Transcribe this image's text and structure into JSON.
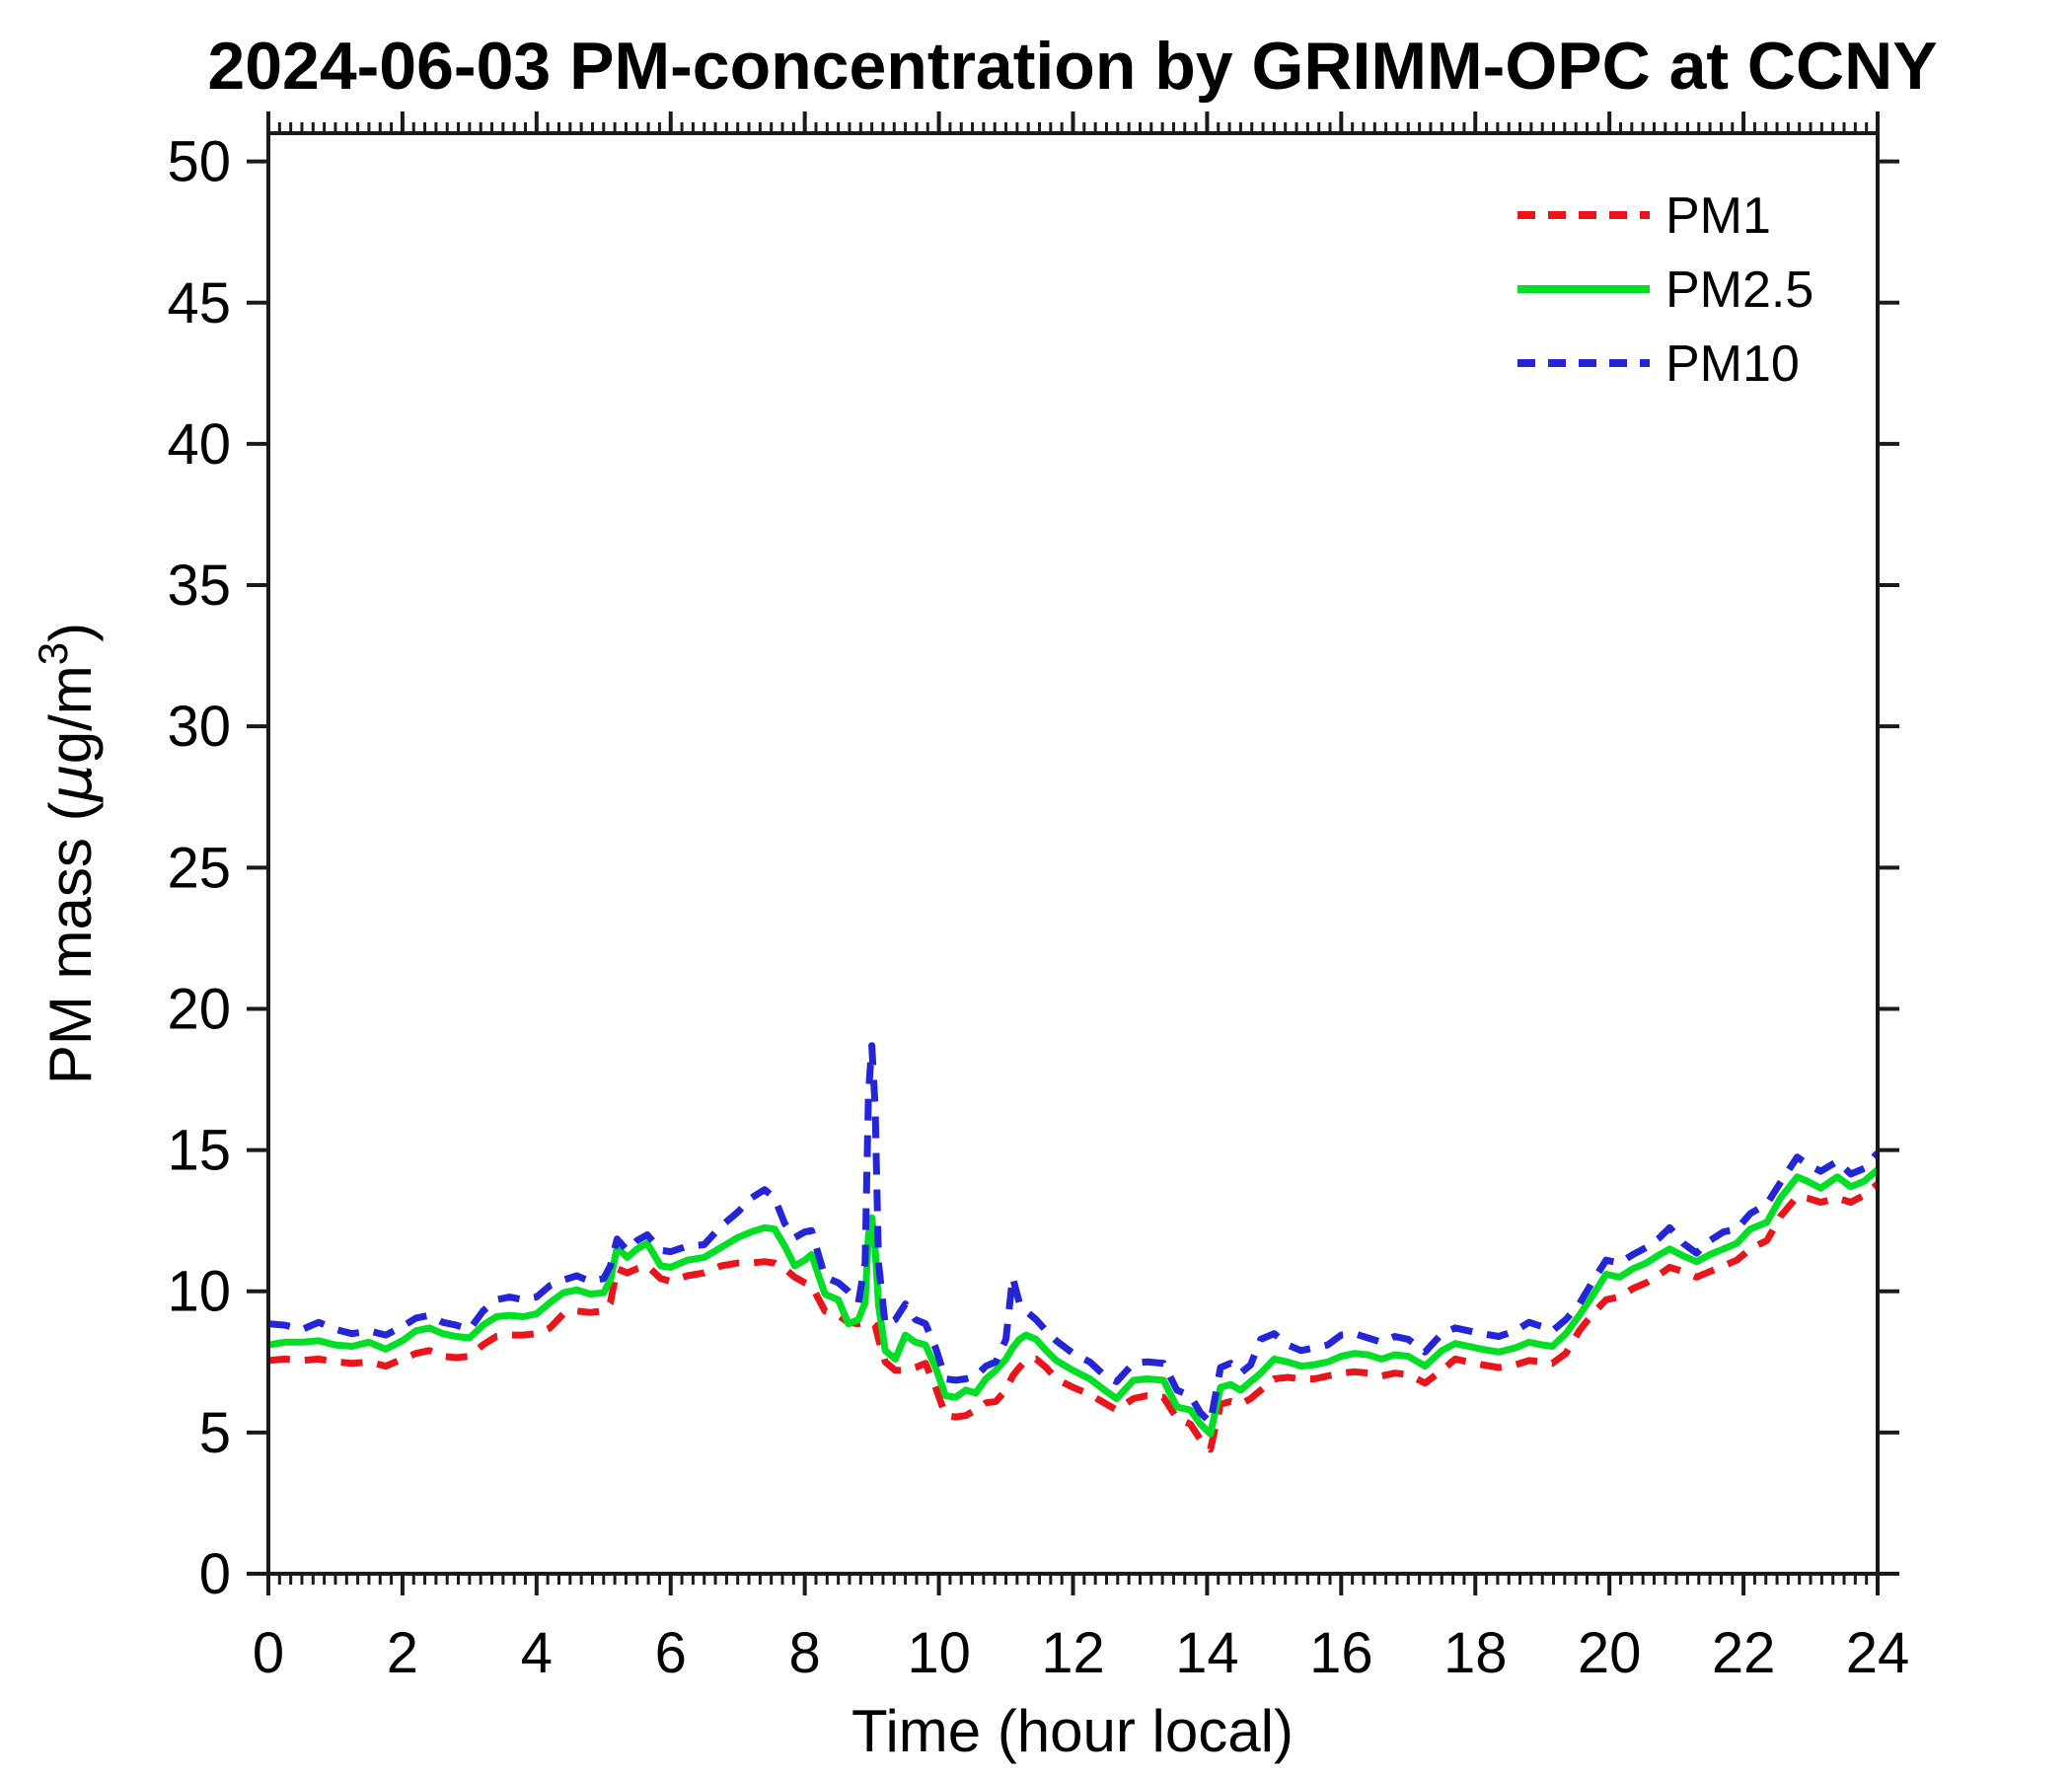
{
  "title": "2024-06-03 PM-concentration by GRIMM-OPC at CCNY",
  "axes": {
    "xlabel": "Time (hour local)",
    "ylabel_parts": {
      "prefix": "PM mass (",
      "mu": "μ",
      "mid": "g/m",
      "sup": "3",
      "suffix": ")"
    },
    "xticks": [
      0,
      2,
      4,
      6,
      8,
      10,
      12,
      14,
      16,
      18,
      20,
      22,
      24
    ],
    "yticks": [
      0,
      5,
      10,
      15,
      20,
      25,
      30,
      35,
      40,
      45,
      50
    ],
    "x_minor_step_minutes": 10,
    "axis_color": "#1a1a1a"
  },
  "legend": {
    "position": "upper right"
  },
  "chart_data": {
    "type": "line",
    "title": "2024-06-03 PM-concentration by GRIMM-OPC at CCNY",
    "xlabel": "Time (hour local)",
    "ylabel": "PM mass (μg/m³)",
    "xlim": [
      0,
      24
    ],
    "ylim": [
      0,
      51
    ],
    "grid": false,
    "legend_position": "upper right",
    "x": [
      0,
      0.25,
      0.5,
      0.75,
      1,
      1.25,
      1.5,
      1.75,
      2,
      2.2,
      2.4,
      2.6,
      2.8,
      3,
      3.2,
      3.4,
      3.6,
      3.8,
      4,
      4.2,
      4.4,
      4.6,
      4.8,
      5,
      5.1,
      5.2,
      5.35,
      5.5,
      5.65,
      5.85,
      6,
      6.25,
      6.5,
      6.75,
      7,
      7.2,
      7.4,
      7.55,
      7.7,
      7.85,
      8,
      8.1,
      8.3,
      8.5,
      8.65,
      8.8,
      8.9,
      8.95,
      9,
      9.05,
      9.1,
      9.2,
      9.35,
      9.5,
      9.65,
      9.8,
      9.95,
      10.1,
      10.25,
      10.4,
      10.55,
      10.7,
      10.85,
      11,
      11.1,
      11.2,
      11.3,
      11.45,
      11.6,
      11.75,
      12,
      12.25,
      12.5,
      12.65,
      12.9,
      13.1,
      13.35,
      13.55,
      13.75,
      13.9,
      14.05,
      14.2,
      14.35,
      14.5,
      14.65,
      14.8,
      15,
      15.2,
      15.4,
      15.6,
      15.8,
      16,
      16.2,
      16.4,
      16.6,
      16.8,
      17,
      17.25,
      17.5,
      17.7,
      17.9,
      18.1,
      18.35,
      18.6,
      18.8,
      19,
      19.15,
      19.35,
      19.55,
      19.75,
      19.95,
      20.15,
      20.35,
      20.55,
      20.75,
      20.9,
      21.1,
      21.3,
      21.5,
      21.7,
      21.9,
      22.1,
      22.35,
      22.55,
      22.8,
      22.95,
      23.15,
      23.4,
      23.6,
      23.8,
      24
    ],
    "series": [
      {
        "name": "PM1",
        "color": "#ea151b",
        "style": "dashed",
        "values": [
          7.55,
          7.6,
          7.55,
          7.6,
          7.5,
          7.45,
          7.5,
          7.35,
          7.6,
          7.8,
          7.9,
          7.7,
          7.65,
          7.7,
          8.1,
          8.4,
          8.45,
          8.45,
          8.5,
          8.7,
          9.2,
          9.3,
          9.25,
          9.3,
          9.6,
          10.8,
          10.65,
          10.8,
          10.9,
          10.45,
          10.35,
          10.55,
          10.65,
          10.9,
          11.0,
          11.0,
          11.05,
          11.0,
          10.8,
          10.5,
          10.3,
          10.2,
          9.3,
          9.15,
          8.9,
          8.85,
          8.9,
          8.9,
          8.9,
          8.8,
          8.3,
          7.5,
          7.2,
          7.2,
          7.3,
          7.45,
          6.6,
          5.6,
          5.55,
          5.6,
          5.8,
          6.05,
          6.1,
          6.5,
          7.0,
          7.3,
          7.55,
          7.6,
          7.3,
          6.9,
          6.6,
          6.35,
          6.0,
          5.8,
          6.2,
          6.3,
          6.25,
          5.5,
          5.3,
          4.75,
          4.4,
          6.0,
          6.1,
          6.0,
          6.2,
          6.5,
          6.9,
          6.95,
          6.9,
          6.9,
          7.0,
          7.1,
          7.15,
          7.1,
          7.0,
          7.1,
          7.05,
          6.75,
          7.2,
          7.6,
          7.5,
          7.4,
          7.3,
          7.4,
          7.55,
          7.5,
          7.45,
          7.8,
          8.6,
          9.2,
          9.7,
          9.8,
          10.1,
          10.3,
          10.6,
          10.85,
          10.7,
          10.5,
          10.7,
          10.9,
          11.1,
          11.5,
          11.8,
          12.65,
          13.35,
          13.3,
          13.15,
          13.3,
          13.15,
          13.4,
          13.8
        ]
      },
      {
        "name": "PM2.5",
        "color": "#00de26",
        "style": "solid",
        "values": [
          8.1,
          8.2,
          8.2,
          8.25,
          8.1,
          8.05,
          8.2,
          7.95,
          8.25,
          8.6,
          8.7,
          8.5,
          8.4,
          8.35,
          8.8,
          9.1,
          9.15,
          9.1,
          9.2,
          9.6,
          9.95,
          10.05,
          9.9,
          9.95,
          10.4,
          11.55,
          11.2,
          11.5,
          11.7,
          10.9,
          10.85,
          11.1,
          11.2,
          11.55,
          11.9,
          12.1,
          12.25,
          12.2,
          11.6,
          10.9,
          11.1,
          11.3,
          9.9,
          9.7,
          8.85,
          9.0,
          9.6,
          12.0,
          12.6,
          11.5,
          9.5,
          7.9,
          7.6,
          8.45,
          8.2,
          8.1,
          7.3,
          6.3,
          6.25,
          6.5,
          6.4,
          6.9,
          7.2,
          7.6,
          8.0,
          8.3,
          8.45,
          8.3,
          7.9,
          7.55,
          7.2,
          6.9,
          6.45,
          6.2,
          6.85,
          6.9,
          6.85,
          5.9,
          5.8,
          5.3,
          4.95,
          6.6,
          6.7,
          6.5,
          6.8,
          7.1,
          7.6,
          7.5,
          7.35,
          7.4,
          7.5,
          7.7,
          7.8,
          7.75,
          7.6,
          7.75,
          7.7,
          7.35,
          7.9,
          8.15,
          8.05,
          7.95,
          7.85,
          8.0,
          8.2,
          8.1,
          8.05,
          8.5,
          9.15,
          9.85,
          10.6,
          10.5,
          10.8,
          11.0,
          11.3,
          11.5,
          11.25,
          11.05,
          11.3,
          11.5,
          11.7,
          12.2,
          12.45,
          13.3,
          14.05,
          13.9,
          13.65,
          14.05,
          13.7,
          13.9,
          14.3
        ]
      },
      {
        "name": "PM10",
        "color": "#2424d9",
        "style": "dashed",
        "values": [
          8.85,
          8.8,
          8.65,
          8.9,
          8.65,
          8.5,
          8.6,
          8.45,
          8.75,
          9.05,
          9.15,
          8.9,
          8.8,
          8.65,
          9.3,
          9.7,
          9.8,
          9.7,
          9.8,
          10.2,
          10.4,
          10.55,
          10.35,
          10.45,
          10.9,
          11.85,
          11.45,
          11.8,
          12.0,
          11.45,
          11.4,
          11.6,
          11.65,
          12.3,
          12.8,
          13.3,
          13.6,
          13.3,
          12.4,
          11.9,
          12.1,
          12.15,
          10.5,
          10.3,
          10.0,
          9.6,
          11.0,
          17.0,
          18.7,
          16.5,
          11.0,
          8.8,
          9.0,
          9.55,
          9.0,
          8.85,
          8.0,
          6.9,
          6.85,
          6.9,
          7.0,
          7.35,
          7.5,
          8.3,
          10.5,
          9.6,
          9.3,
          9.0,
          8.6,
          8.25,
          7.8,
          7.5,
          6.95,
          6.8,
          7.45,
          7.5,
          7.45,
          6.5,
          6.3,
          5.7,
          5.35,
          7.3,
          7.45,
          7.1,
          7.4,
          8.3,
          8.5,
          8.1,
          7.9,
          8.0,
          8.1,
          8.45,
          8.5,
          8.35,
          8.2,
          8.4,
          8.3,
          7.85,
          8.5,
          8.7,
          8.6,
          8.5,
          8.4,
          8.6,
          8.9,
          8.75,
          8.6,
          9.0,
          9.55,
          10.35,
          11.1,
          11.0,
          11.3,
          11.55,
          11.9,
          12.25,
          11.7,
          11.35,
          11.8,
          12.1,
          12.2,
          12.75,
          13.1,
          13.85,
          14.75,
          14.5,
          14.25,
          14.6,
          14.15,
          14.35,
          14.9
        ]
      }
    ]
  }
}
